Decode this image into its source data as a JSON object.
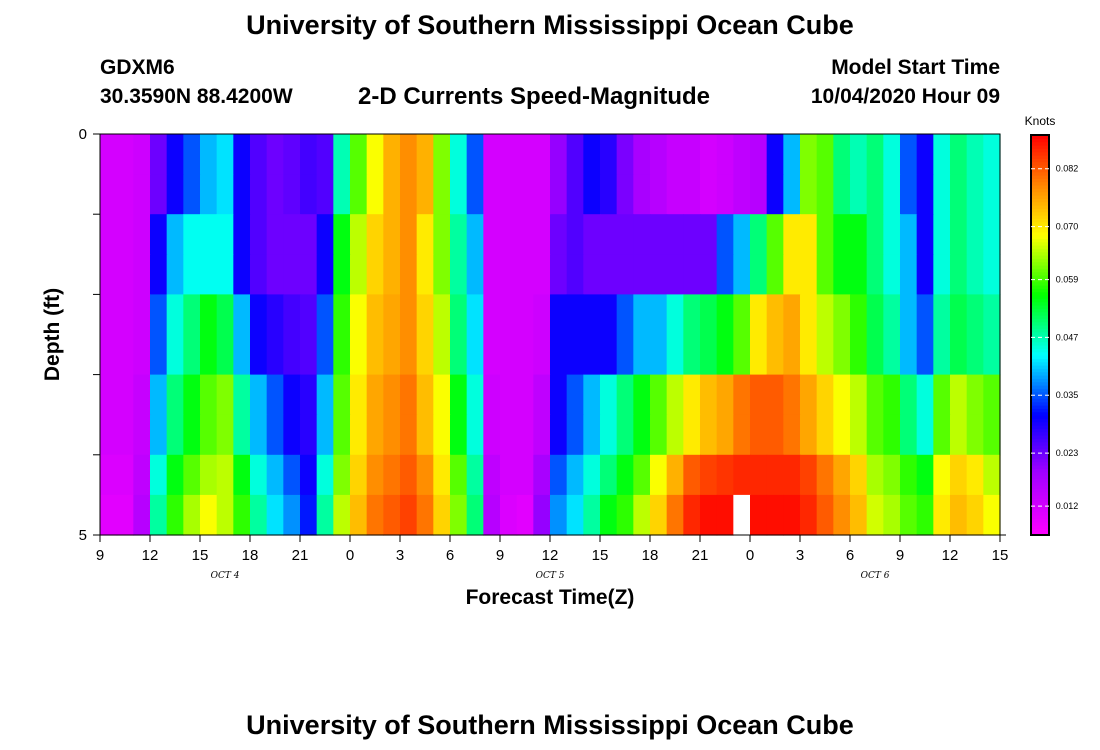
{
  "header": {
    "title": "University of Southern Mississippi Ocean Cube",
    "station_id": "GDXM6",
    "station_coords": "30.3590N 88.4200W",
    "chart_title": "2-D Currents Speed-Magnitude",
    "model_start_label": "Model Start Time",
    "model_start_value": "10/04/2020 Hour 09"
  },
  "footer": {
    "title": "University of Southern Mississippi Ocean Cube"
  },
  "chart_data": {
    "type": "heatmap",
    "title": "2-D Currents Speed-Magnitude",
    "xlabel": "Forecast Time(Z)",
    "ylabel": "Depth (ft)",
    "colorbar_label": "Knots",
    "colorbar_ticks": [
      "0.012",
      "0.023",
      "0.035",
      "0.047",
      "0.059",
      "0.070",
      "0.082"
    ],
    "colorbar_range": [
      0.006,
      0.089
    ],
    "x_tick_labels": [
      "9",
      "12",
      "15",
      "18",
      "21",
      "0",
      "3",
      "6",
      "9",
      "12",
      "15",
      "18",
      "21",
      "0",
      "3",
      "6",
      "9",
      "12",
      "15"
    ],
    "x_range_hours": [
      0,
      54
    ],
    "date_labels": [
      {
        "label": "OCT 4",
        "hour": 7.5
      },
      {
        "label": "OCT 5",
        "hour": 27
      },
      {
        "label": "OCT 6",
        "hour": 46.5
      }
    ],
    "y_tick_labels": [
      "0",
      "5"
    ],
    "y_range_ft": [
      0,
      5
    ],
    "grid": false,
    "hours": [
      0,
      1,
      2,
      3,
      4,
      5,
      6,
      7,
      8,
      9,
      10,
      11,
      12,
      13,
      14,
      15,
      16,
      17,
      18,
      19,
      20,
      21,
      22,
      23,
      24,
      25,
      26,
      27,
      28,
      29,
      30,
      31,
      32,
      33,
      34,
      35,
      36,
      37,
      38,
      39,
      40,
      41,
      42,
      43,
      44,
      45,
      46,
      47,
      48,
      49,
      50,
      51,
      52,
      53
    ],
    "depths_ft": [
      0.25,
      0.75,
      1.25,
      1.75,
      2.25,
      2.75,
      3.25,
      3.75,
      4.25,
      4.75
    ],
    "values_knots": [
      [
        0.012,
        0.012,
        0.013,
        0.023,
        0.03,
        0.035,
        0.04,
        0.042,
        0.03,
        0.025,
        0.023,
        0.024,
        0.026,
        0.025,
        0.047,
        0.06,
        0.068,
        0.075,
        0.078,
        0.075,
        0.062,
        0.045,
        0.035,
        0.012,
        0.012,
        0.012,
        0.012,
        0.02,
        0.025,
        0.03,
        0.028,
        0.022,
        0.018,
        0.016,
        0.014,
        0.014,
        0.012,
        0.013,
        0.015,
        0.016,
        0.03,
        0.04,
        0.062,
        0.06,
        0.05,
        0.047,
        0.05,
        0.045,
        0.035,
        0.03,
        0.045,
        0.05,
        0.047,
        0.045
      ],
      [
        0.012,
        0.012,
        0.013,
        0.023,
        0.03,
        0.035,
        0.04,
        0.042,
        0.03,
        0.025,
        0.023,
        0.024,
        0.026,
        0.025,
        0.047,
        0.06,
        0.068,
        0.075,
        0.078,
        0.075,
        0.062,
        0.045,
        0.035,
        0.012,
        0.012,
        0.012,
        0.012,
        0.02,
        0.025,
        0.03,
        0.028,
        0.022,
        0.018,
        0.016,
        0.014,
        0.014,
        0.012,
        0.013,
        0.015,
        0.016,
        0.03,
        0.04,
        0.062,
        0.06,
        0.05,
        0.047,
        0.05,
        0.045,
        0.035,
        0.03,
        0.045,
        0.05,
        0.047,
        0.045
      ],
      [
        0.012,
        0.012,
        0.013,
        0.03,
        0.04,
        0.044,
        0.044,
        0.044,
        0.03,
        0.025,
        0.023,
        0.023,
        0.023,
        0.03,
        0.055,
        0.065,
        0.072,
        0.075,
        0.078,
        0.07,
        0.062,
        0.048,
        0.04,
        0.012,
        0.012,
        0.012,
        0.012,
        0.023,
        0.025,
        0.023,
        0.023,
        0.023,
        0.023,
        0.023,
        0.023,
        0.023,
        0.023,
        0.035,
        0.04,
        0.05,
        0.06,
        0.07,
        0.07,
        0.06,
        0.055,
        0.055,
        0.05,
        0.045,
        0.04,
        0.03,
        0.045,
        0.05,
        0.047,
        0.045
      ],
      [
        0.012,
        0.012,
        0.013,
        0.03,
        0.04,
        0.044,
        0.044,
        0.044,
        0.03,
        0.025,
        0.023,
        0.023,
        0.023,
        0.03,
        0.055,
        0.065,
        0.072,
        0.075,
        0.078,
        0.07,
        0.062,
        0.048,
        0.04,
        0.012,
        0.012,
        0.012,
        0.012,
        0.023,
        0.025,
        0.023,
        0.023,
        0.023,
        0.023,
        0.023,
        0.023,
        0.023,
        0.023,
        0.035,
        0.04,
        0.05,
        0.06,
        0.07,
        0.07,
        0.06,
        0.055,
        0.055,
        0.05,
        0.045,
        0.04,
        0.03,
        0.045,
        0.05,
        0.047,
        0.045
      ],
      [
        0.012,
        0.012,
        0.013,
        0.035,
        0.045,
        0.05,
        0.055,
        0.052,
        0.04,
        0.03,
        0.028,
        0.026,
        0.025,
        0.035,
        0.058,
        0.068,
        0.074,
        0.076,
        0.078,
        0.072,
        0.065,
        0.05,
        0.042,
        0.012,
        0.012,
        0.012,
        0.013,
        0.03,
        0.03,
        0.03,
        0.03,
        0.035,
        0.04,
        0.04,
        0.045,
        0.05,
        0.052,
        0.055,
        0.06,
        0.07,
        0.074,
        0.076,
        0.07,
        0.065,
        0.062,
        0.058,
        0.052,
        0.048,
        0.04,
        0.035,
        0.048,
        0.052,
        0.05,
        0.048
      ],
      [
        0.012,
        0.012,
        0.013,
        0.035,
        0.045,
        0.05,
        0.055,
        0.052,
        0.04,
        0.03,
        0.028,
        0.026,
        0.025,
        0.035,
        0.058,
        0.068,
        0.074,
        0.076,
        0.078,
        0.072,
        0.065,
        0.05,
        0.042,
        0.012,
        0.012,
        0.012,
        0.013,
        0.03,
        0.03,
        0.03,
        0.03,
        0.035,
        0.04,
        0.04,
        0.045,
        0.05,
        0.052,
        0.055,
        0.06,
        0.07,
        0.074,
        0.076,
        0.07,
        0.065,
        0.062,
        0.058,
        0.052,
        0.048,
        0.04,
        0.035,
        0.048,
        0.052,
        0.05,
        0.048
      ],
      [
        0.012,
        0.012,
        0.014,
        0.04,
        0.05,
        0.055,
        0.06,
        0.062,
        0.048,
        0.04,
        0.035,
        0.03,
        0.028,
        0.04,
        0.06,
        0.07,
        0.076,
        0.078,
        0.08,
        0.074,
        0.068,
        0.055,
        0.045,
        0.013,
        0.012,
        0.012,
        0.015,
        0.03,
        0.035,
        0.04,
        0.045,
        0.05,
        0.055,
        0.06,
        0.065,
        0.07,
        0.074,
        0.076,
        0.08,
        0.082,
        0.082,
        0.08,
        0.076,
        0.072,
        0.068,
        0.065,
        0.06,
        0.058,
        0.05,
        0.045,
        0.06,
        0.065,
        0.062,
        0.06
      ],
      [
        0.012,
        0.012,
        0.014,
        0.04,
        0.05,
        0.055,
        0.06,
        0.062,
        0.048,
        0.04,
        0.035,
        0.03,
        0.028,
        0.04,
        0.06,
        0.07,
        0.076,
        0.078,
        0.08,
        0.074,
        0.068,
        0.055,
        0.045,
        0.013,
        0.012,
        0.012,
        0.015,
        0.03,
        0.035,
        0.04,
        0.045,
        0.05,
        0.055,
        0.06,
        0.065,
        0.07,
        0.074,
        0.076,
        0.08,
        0.082,
        0.082,
        0.08,
        0.076,
        0.072,
        0.068,
        0.065,
        0.06,
        0.058,
        0.05,
        0.045,
        0.06,
        0.065,
        0.062,
        0.06
      ],
      [
        0.011,
        0.011,
        0.015,
        0.045,
        0.055,
        0.06,
        0.064,
        0.065,
        0.055,
        0.045,
        0.04,
        0.035,
        0.03,
        0.045,
        0.062,
        0.072,
        0.078,
        0.08,
        0.082,
        0.078,
        0.07,
        0.06,
        0.048,
        0.015,
        0.012,
        0.012,
        0.018,
        0.035,
        0.04,
        0.045,
        0.05,
        0.055,
        0.06,
        0.068,
        0.075,
        0.082,
        0.084,
        0.085,
        0.086,
        0.086,
        0.086,
        0.086,
        0.084,
        0.08,
        0.076,
        0.072,
        0.064,
        0.062,
        0.058,
        0.055,
        0.068,
        0.072,
        0.07,
        0.065
      ],
      [
        0.01,
        0.01,
        0.016,
        0.048,
        0.058,
        0.064,
        0.068,
        0.065,
        0.058,
        0.048,
        0.042,
        0.038,
        0.032,
        0.048,
        0.065,
        0.074,
        0.08,
        0.082,
        0.084,
        0.08,
        0.072,
        0.062,
        0.05,
        0.016,
        0.011,
        0.01,
        0.02,
        0.038,
        0.042,
        0.048,
        0.055,
        0.058,
        0.065,
        0.072,
        0.08,
        0.086,
        0.088,
        0.088,
        null,
        0.088,
        0.088,
        0.088,
        0.086,
        0.082,
        0.078,
        0.074,
        0.066,
        0.064,
        0.06,
        0.058,
        0.07,
        0.074,
        0.072,
        0.068
      ]
    ]
  }
}
